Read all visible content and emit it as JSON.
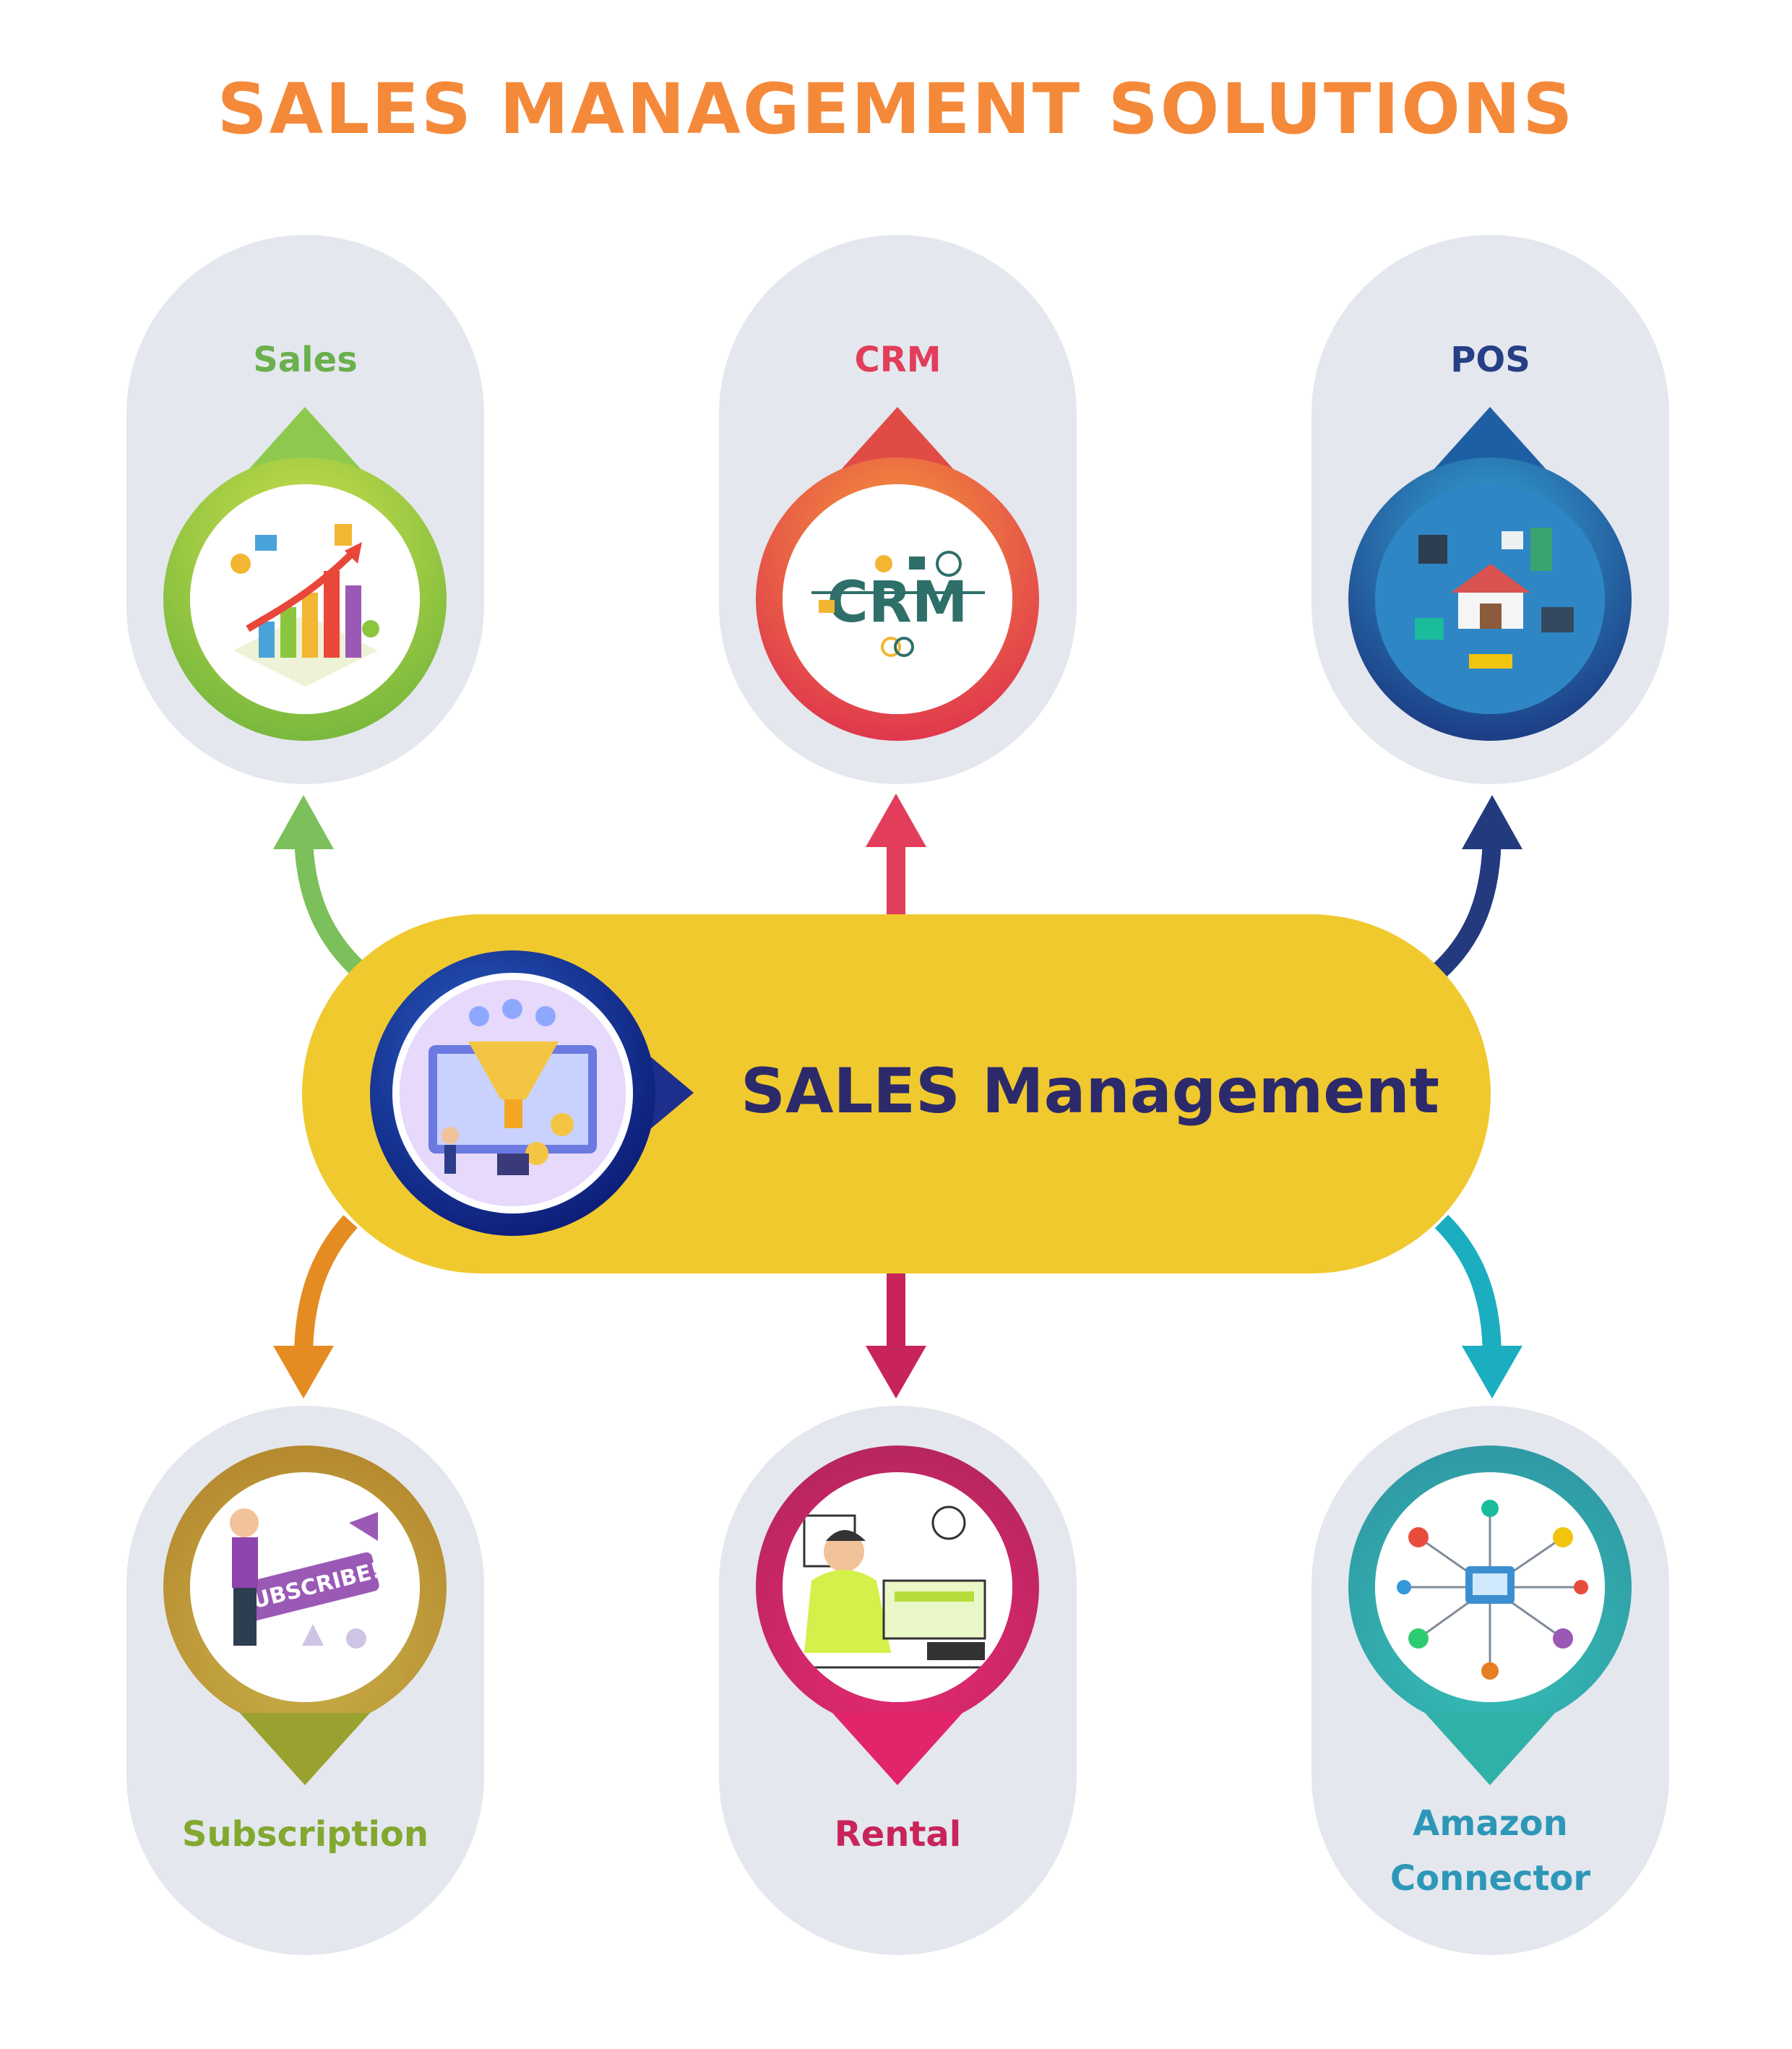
{
  "title": "SALES MANAGEMENT SOLUTIONS",
  "hub": {
    "label": "SALES Management",
    "icon": "sales-funnel-illustration"
  },
  "modules_top": [
    {
      "label": "Sales",
      "color": "#6ab04c",
      "icon": "sales-chart-illustration"
    },
    {
      "label": "CRM",
      "color": "#e23d5a",
      "icon": "crm-illustration"
    },
    {
      "label": "POS",
      "color": "#263f86",
      "icon": "pos-illustration"
    }
  ],
  "modules_bottom": [
    {
      "label": "Subscription",
      "color": "#82a82f",
      "icon": "subscription-illustration"
    },
    {
      "label": "Rental",
      "color": "#c8245a",
      "icon": "rental-illustration"
    },
    {
      "label_line1": "Amazon",
      "label_line2": "Connector",
      "color": "#2d97b8",
      "icon": "amazon-connector-illustration"
    }
  ]
}
